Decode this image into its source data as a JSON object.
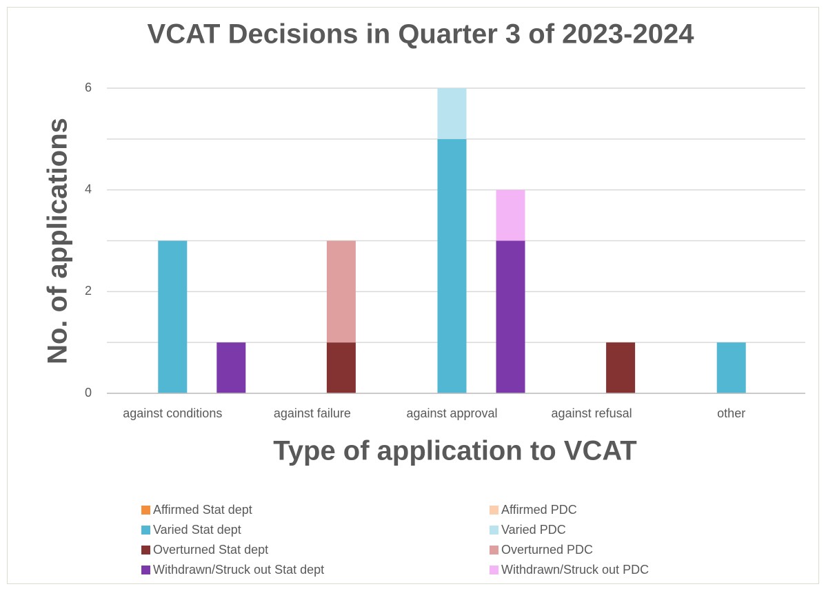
{
  "chart_data": {
    "type": "bar",
    "title": "VCAT Decisions in Quarter 3 of 2023-2024",
    "xlabel": "Type of application to VCAT",
    "ylabel": "No. of applications",
    "categories": [
      "against conditions",
      "against failure",
      "against approval",
      "against refusal",
      "other"
    ],
    "series": [
      {
        "name": "Affirmed Stat dept",
        "color": "#f28e3c",
        "values": [
          0,
          0,
          0,
          0,
          0
        ]
      },
      {
        "name": "Affirmed PDC",
        "color": "#fbcfae",
        "values": [
          0,
          0,
          0,
          0,
          0
        ]
      },
      {
        "name": "Varied Stat dept",
        "color": "#52b7d2",
        "values": [
          3,
          0,
          5,
          0,
          1
        ]
      },
      {
        "name": "Varied PDC",
        "color": "#b9e3ee",
        "values": [
          0,
          0,
          1,
          0,
          0
        ]
      },
      {
        "name": "Overturned Stat dept",
        "color": "#843232",
        "values": [
          0,
          1,
          0,
          1,
          0
        ]
      },
      {
        "name": "Overturned PDC",
        "color": "#e09f9f",
        "values": [
          0,
          2,
          0,
          0,
          0
        ]
      },
      {
        "name": "Withdrawn/Struck out Stat dept",
        "color": "#7b39aa",
        "values": [
          1,
          0,
          3,
          0,
          0
        ]
      },
      {
        "name": "Withdrawn/Struck out PDC",
        "color": "#f3b5f6",
        "values": [
          0,
          0,
          1,
          0,
          0
        ]
      }
    ],
    "ylim": [
      0,
      6
    ],
    "yticks": [
      0,
      2,
      4,
      6
    ],
    "minor_yticks": [
      1,
      3,
      5
    ],
    "grid": true,
    "legend": "bottom"
  }
}
